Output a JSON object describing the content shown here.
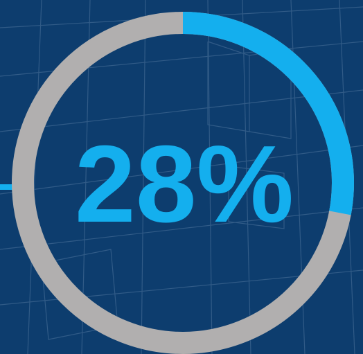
{
  "colors": {
    "background": "#0d3d6e",
    "track": "#b1afaf",
    "progress": "#14afee",
    "gridline": "#3d6690"
  },
  "chart_data": {
    "type": "pie",
    "style": "donut-progress",
    "value": 28,
    "unit": "%",
    "label": "28%",
    "slices": [
      {
        "value": 28,
        "color": "#14afee"
      },
      {
        "value": 72,
        "color": "#b1afaf"
      }
    ]
  }
}
